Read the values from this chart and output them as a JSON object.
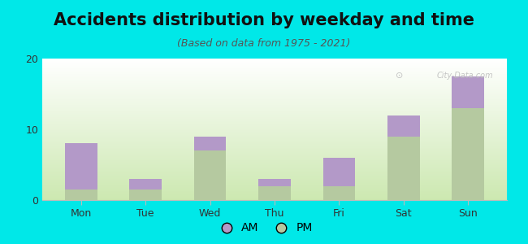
{
  "title": "Accidents distribution by weekday and time",
  "subtitle": "(Based on data from 1975 - 2021)",
  "categories": [
    "Mon",
    "Tue",
    "Wed",
    "Thu",
    "Fri",
    "Sat",
    "Sun"
  ],
  "pm_values": [
    1.5,
    1.5,
    7.0,
    2.0,
    2.0,
    9.0,
    13.0
  ],
  "am_values": [
    6.5,
    1.5,
    2.0,
    1.0,
    4.0,
    3.0,
    4.5
  ],
  "am_color": "#b399c8",
  "pm_color": "#b5c9a0",
  "background_color": "#00e8e8",
  "ylim": [
    0,
    20
  ],
  "yticks": [
    0,
    10,
    20
  ],
  "bar_width": 0.5,
  "title_fontsize": 15,
  "subtitle_fontsize": 9,
  "tick_fontsize": 9,
  "legend_fontsize": 10,
  "watermark_text": "City-Data.com",
  "grid_color": "#cccccc",
  "gradient_top": "#ffffff",
  "gradient_bot": "#cce8b0"
}
